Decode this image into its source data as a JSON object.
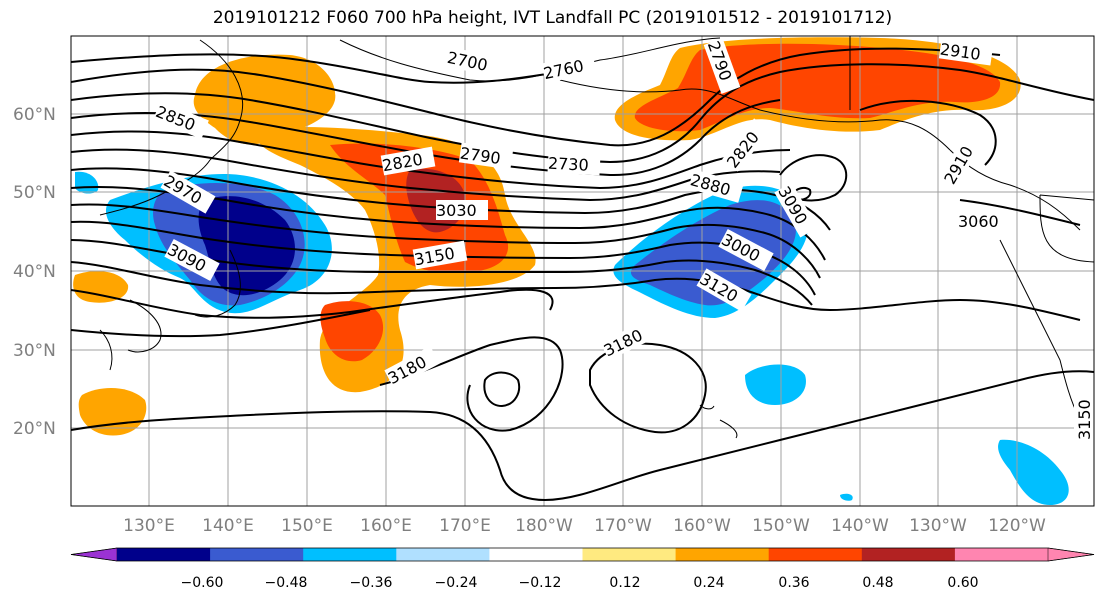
{
  "title": "2019101212 F060 700 hPa height, IVT Landfall PC (2019101512 - 2019101712)",
  "lat_labels": [
    "60°N",
    "50°N",
    "40°N",
    "30°N",
    "20°N"
  ],
  "lon_labels": [
    "130°E",
    "140°E",
    "150°E",
    "160°E",
    "170°E",
    "180°W",
    "170°W",
    "160°W",
    "150°W",
    "140°W",
    "130°W",
    "120°W"
  ],
  "contour_labels": [
    "2700",
    "2760",
    "2910",
    "2850",
    "2820",
    "2790",
    "2730",
    "2880",
    "2820",
    "2970",
    "3030",
    "3090",
    "3150",
    "3000",
    "3060",
    "3120",
    "3180",
    "3180",
    "3150",
    "2910",
    "3090",
    "2790"
  ],
  "colorbar": {
    "ticks": [
      "−0.60",
      "−0.48",
      "−0.36",
      "−0.24",
      "−0.12",
      "0.12",
      "0.24",
      "0.36",
      "0.48",
      "0.60"
    ],
    "colors": [
      "#9b32d3",
      "#00008b",
      "#3a5bd0",
      "#00bfff",
      "#b0e0ff",
      "#ffffff",
      "#ffea80",
      "#ffa500",
      "#ff4500",
      "#b22222",
      "#ff85b0",
      "#ff85b0"
    ]
  },
  "fill_colors": {
    "orange": "#ffa500",
    "red_orange": "#ff4500",
    "dark_red": "#b22222",
    "light_blue": "#00bfff",
    "blue": "#3a5bd0",
    "navy": "#00008b"
  }
}
